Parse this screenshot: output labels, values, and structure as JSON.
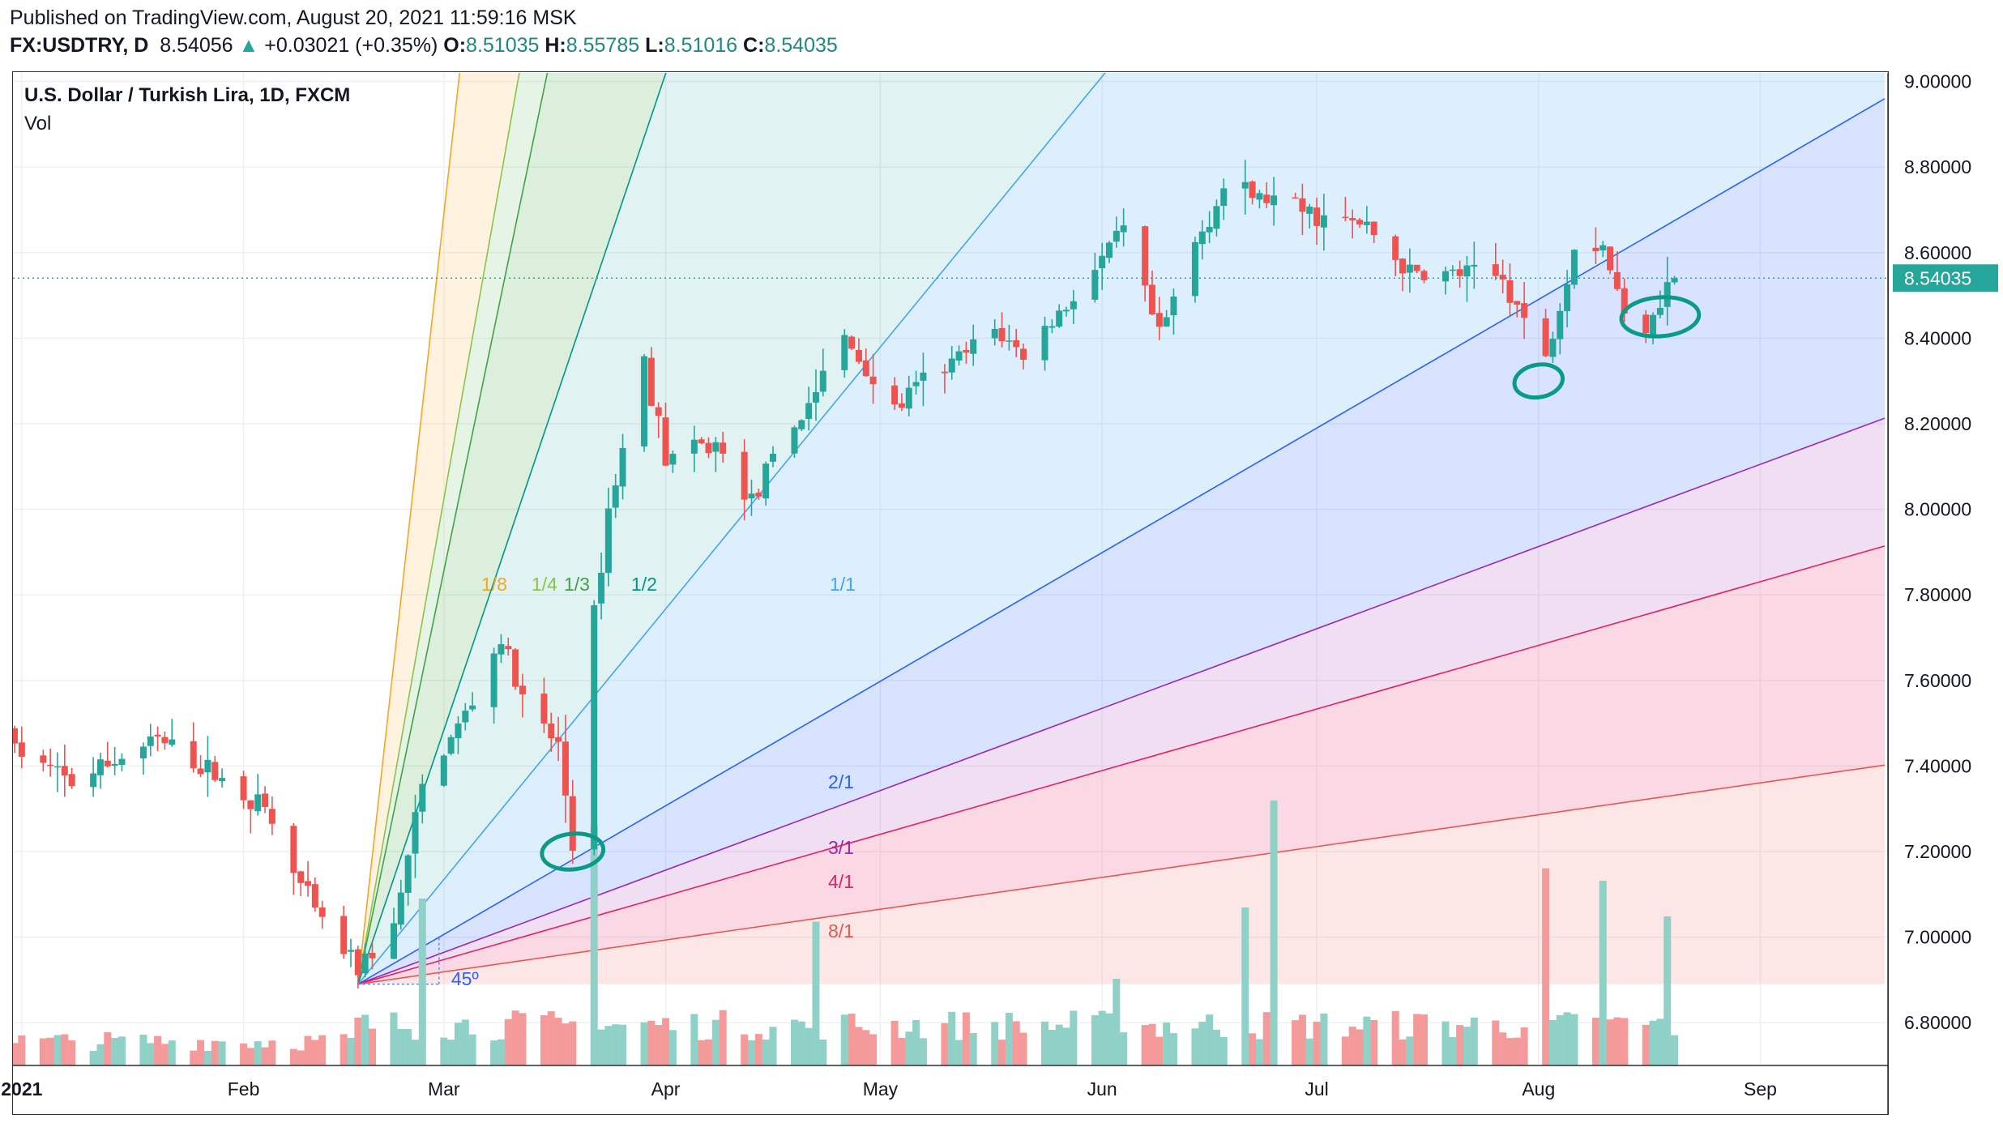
{
  "header": {
    "published": "Published on TradingView.com, August 20, 2021 11:59:16 MSK",
    "symbol": "FX:USDTRY, D",
    "last": "8.54056",
    "change_arrow": "▲",
    "change": "+0.03021 (+0.35%)",
    "o_label": "O:",
    "o_value": "8.51035",
    "h_label": "H:",
    "h_value": "8.55785",
    "l_label": "L:",
    "l_value": "8.51016",
    "c_label": "C:",
    "c_value": "8.54035"
  },
  "legend": {
    "title": "U.S. Dollar / Turkish Lira, 1D, FXCM",
    "volume": "Vol"
  },
  "colors": {
    "up": "#26a69a",
    "down": "#ef5350",
    "up_volume": "#8fd1c7",
    "down_volume": "#f49a9a",
    "price_label_bg": "#26a69a"
  },
  "chart_data": {
    "type": "candlestick",
    "title": "U.S. Dollar / Turkish Lira, 1D, FXCM",
    "series_name": "FX:USDTRY, D",
    "x_tick_labels": [
      "2021",
      "Feb",
      "Mar",
      "Apr",
      "May",
      "Jun",
      "Jul",
      "Aug",
      "Sep"
    ],
    "y_tick_labels": [
      "9.00000",
      "8.80000",
      "8.60000",
      "8.40000",
      "8.20000",
      "8.00000",
      "7.80000",
      "7.60000",
      "7.40000",
      "7.20000",
      "7.00000",
      "6.80000"
    ],
    "y_ticks": [
      9.0,
      8.8,
      8.6,
      8.4,
      8.2,
      8.0,
      7.8,
      7.6,
      7.4,
      7.2,
      7.0,
      6.8
    ],
    "ylim": [
      6.7,
      9.02
    ],
    "last_price_label": "8.54035",
    "last_price": 8.54035,
    "grid": true,
    "waypoints": [
      [
        "2020-12-31",
        7.44
      ],
      [
        "2021-01-08",
        7.36
      ],
      [
        "2021-01-15",
        7.42
      ],
      [
        "2021-01-20",
        7.46
      ],
      [
        "2021-01-28",
        7.38
      ],
      [
        "2021-02-04",
        7.3
      ],
      [
        "2021-02-08",
        7.15
      ],
      [
        "2021-02-12",
        7.03
      ],
      [
        "2021-02-17",
        6.93
      ],
      [
        "2021-02-22",
        7.02
      ],
      [
        "2021-02-26",
        7.35
      ],
      [
        "2021-03-05",
        7.55
      ],
      [
        "2021-03-09",
        7.7
      ],
      [
        "2021-03-12",
        7.55
      ],
      [
        "2021-03-15",
        7.48
      ],
      [
        "2021-03-17",
        7.45
      ],
      [
        "2021-03-19",
        7.22
      ],
      [
        "2021-03-22",
        7.75
      ],
      [
        "2021-03-24",
        8.0
      ],
      [
        "2021-03-29",
        8.35
      ],
      [
        "2021-04-01",
        8.12
      ],
      [
        "2021-04-08",
        8.15
      ],
      [
        "2021-04-13",
        8.02
      ],
      [
        "2021-04-21",
        8.25
      ],
      [
        "2021-04-26",
        8.4
      ],
      [
        "2021-05-03",
        8.23
      ],
      [
        "2021-05-07",
        8.3
      ],
      [
        "2021-05-12",
        8.35
      ],
      [
        "2021-05-17",
        8.42
      ],
      [
        "2021-05-21",
        8.36
      ],
      [
        "2021-06-01",
        8.58
      ],
      [
        "2021-06-04",
        8.65
      ],
      [
        "2021-06-09",
        8.4
      ],
      [
        "2021-06-14",
        8.62
      ],
      [
        "2021-06-18",
        8.75
      ],
      [
        "2021-06-25",
        8.72
      ],
      [
        "2021-07-02",
        8.68
      ],
      [
        "2021-07-08",
        8.66
      ],
      [
        "2021-07-14",
        8.55
      ],
      [
        "2021-07-21",
        8.55
      ],
      [
        "2021-07-27",
        8.54
      ],
      [
        "2021-08-02",
        8.35
      ],
      [
        "2021-08-06",
        8.62
      ],
      [
        "2021-08-10",
        8.62
      ],
      [
        "2021-08-13",
        8.45
      ],
      [
        "2021-08-16",
        8.44
      ],
      [
        "2021-08-19",
        8.52
      ],
      [
        "2021-08-20",
        8.54
      ]
    ],
    "volume_spikes": {
      "2021-02-26": 0.95,
      "2021-03-22": 1.35,
      "2021-04-22": 0.82,
      "2021-06-03": 0.5,
      "2021-06-21": 0.9,
      "2021-06-25": 1.5,
      "2021-08-02": 1.12,
      "2021-08-10": 1.05,
      "2021-08-19": 0.85
    },
    "gann_fan": {
      "anchor": {
        "date": "2021-02-17",
        "price": 6.89
      },
      "label_45": "45º",
      "lines": [
        {
          "label": "1/8",
          "slope": 0.15,
          "color": "#f5a623"
        },
        {
          "label": "1/4",
          "slope": 0.0945,
          "color": "#8bc34a"
        },
        {
          "label": "1/3",
          "slope": 0.0805,
          "color": "#43a047"
        },
        {
          "label": "1/2",
          "slope": 0.0495,
          "color": "#009688"
        },
        {
          "label": "1/1",
          "slope": 0.0204,
          "color": "#42a5f5"
        },
        {
          "label": "2/1",
          "slope": 0.0097,
          "color": "#2962ff"
        },
        {
          "label": "3/1",
          "slope": 0.0062,
          "color": "#9c27b0"
        },
        {
          "label": "4/1",
          "slope": 0.0048,
          "color": "#e91e63"
        },
        {
          "label": "8/1",
          "slope": 0.0024,
          "color": "#ef5350"
        }
      ]
    }
  }
}
